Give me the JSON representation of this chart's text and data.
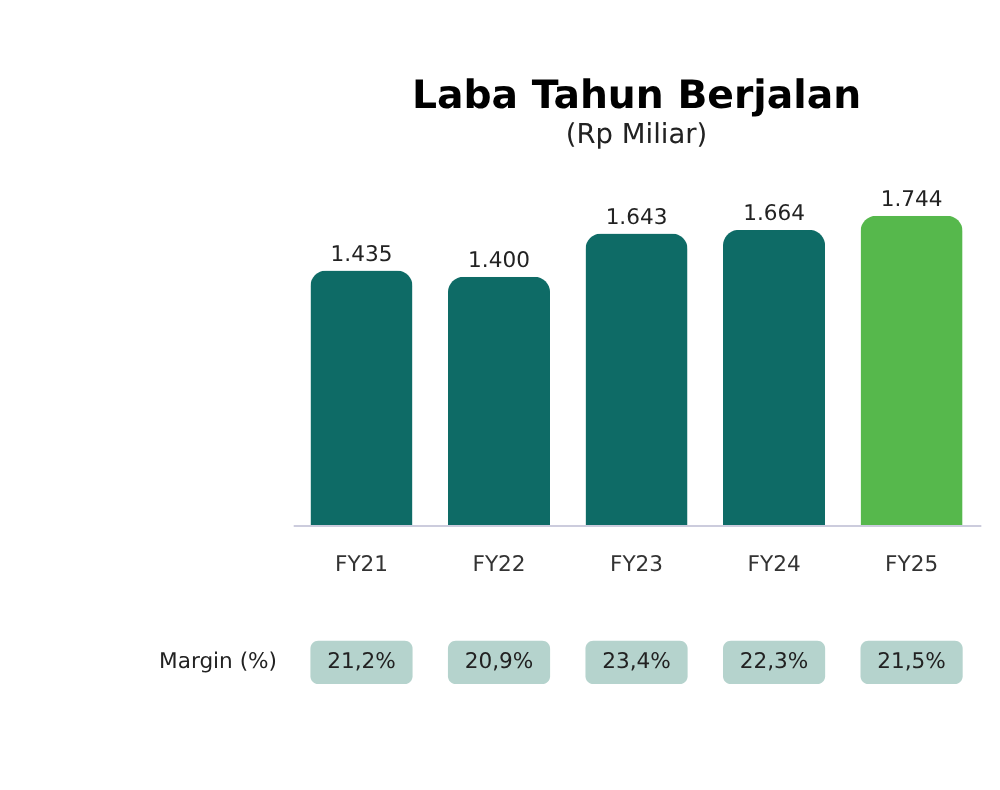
{
  "chart_data": {
    "type": "bar",
    "title": "Laba Tahun Berjalan",
    "subtitle": "(Rp Miliar)",
    "categories": [
      "FY21",
      "FY22",
      "FY23",
      "FY24",
      "FY25"
    ],
    "values": [
      1435,
      1400,
      1643,
      1664,
      1744
    ],
    "colors": [
      "#0e6b66",
      "#0e6b66",
      "#0e6b66",
      "#0e6b66",
      "#56b84c"
    ],
    "value_labels": [
      "1.435",
      "1.400",
      "1.643",
      "1.664",
      "1.744"
    ],
    "annotations": [
      "Margin (%)",
      "21,2%",
      "20,9%",
      "23,4%",
      "22,3%",
      "21,5%"
    ],
    "grid": false
  }
}
